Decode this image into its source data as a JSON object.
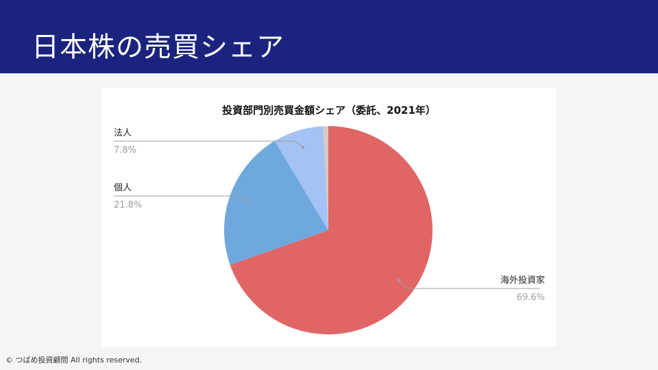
{
  "header": {
    "title": "日本株の売買シェア"
  },
  "footer": {
    "copyright": "© つばめ投資顧問 All rights reserved."
  },
  "colors": {
    "header_bg": "#1c237e"
  },
  "chart_data": {
    "type": "pie",
    "title": "投資部門別売買金額シェア（委託、2021年）",
    "slices": [
      {
        "label": "海外投資家",
        "value": 69.6,
        "value_label": "69.6%",
        "color": "#e06666"
      },
      {
        "label": "個人",
        "value": 21.8,
        "value_label": "21.8%",
        "color": "#6fa8dc"
      },
      {
        "label": "法人",
        "value": 7.8,
        "value_label": "7.8%",
        "color": "#a4c2f4"
      },
      {
        "label": "",
        "value": 0.8,
        "value_label": "",
        "color": "#d9c9c3"
      }
    ]
  }
}
